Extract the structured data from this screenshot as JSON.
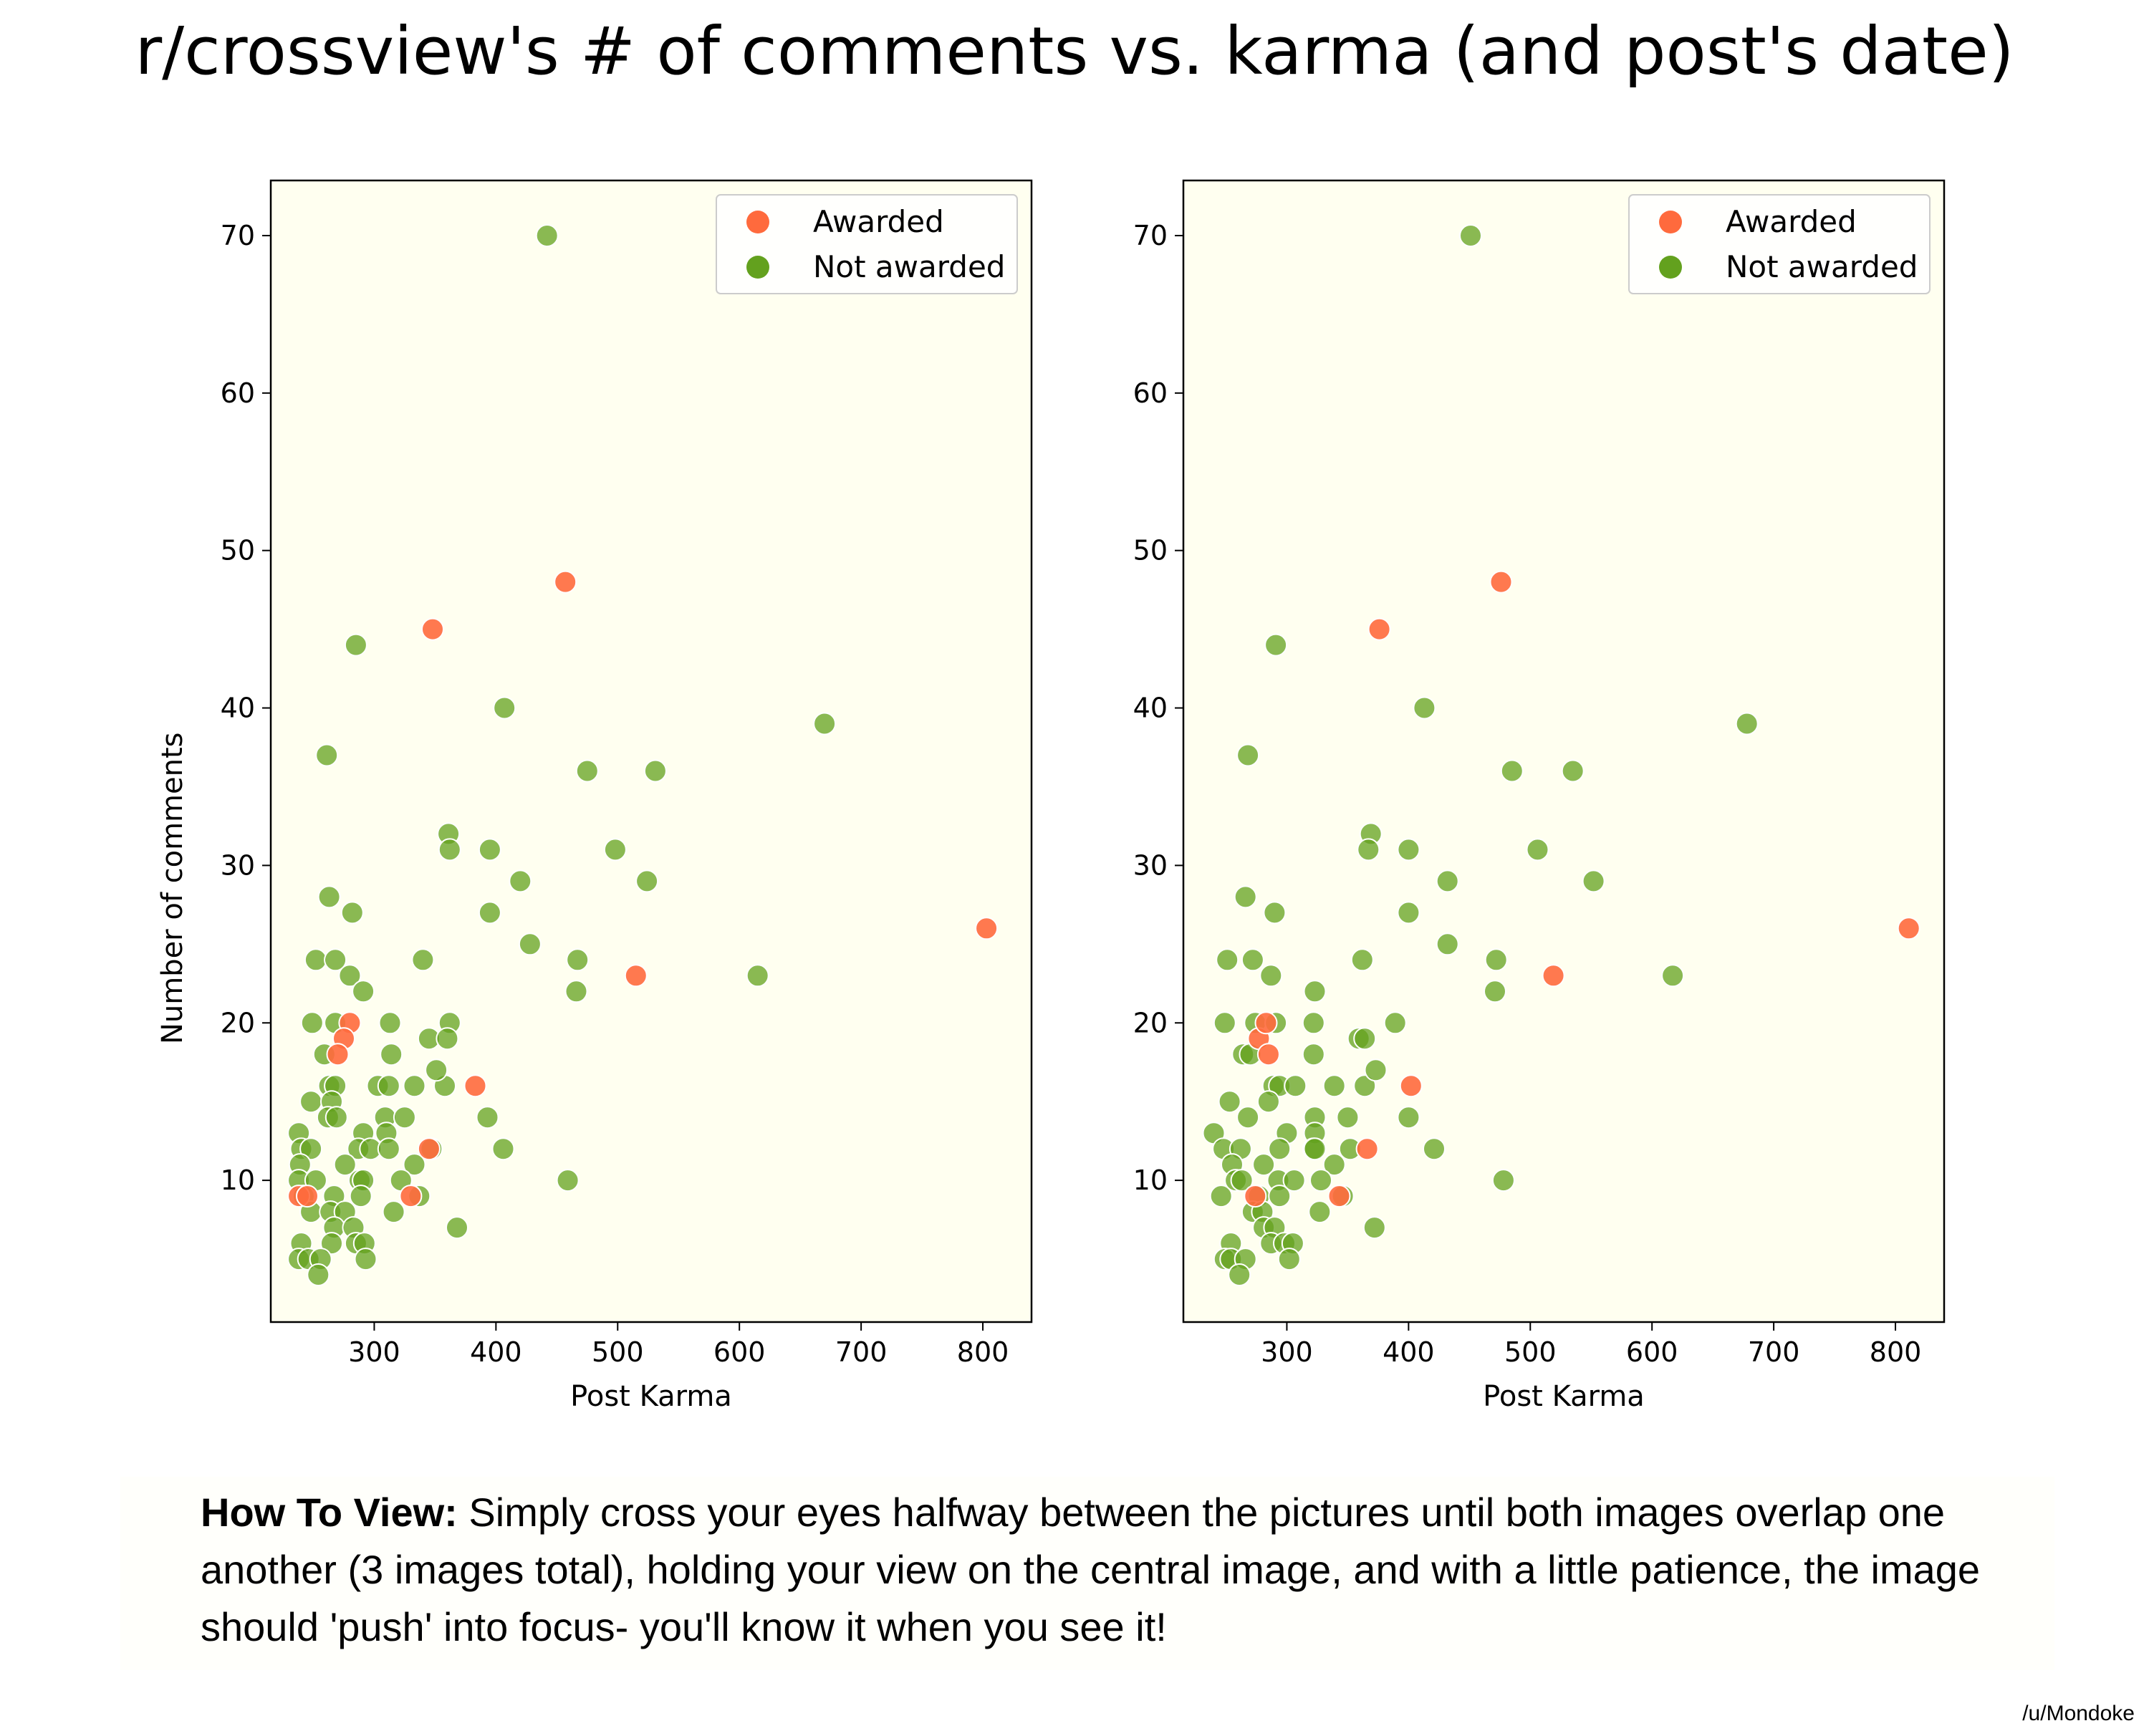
{
  "title": "r/crossview's # of comments vs. karma (and post's date)",
  "note": {
    "bold": "How To View:",
    "text": " Simply cross your eyes halfway between the pictures until both images overlap one another (3 images total), holding your view on the central image, and with a little patience, the image should 'push' into focus- you'll know it when you see it!"
  },
  "credit": "/u/Mondoke",
  "colors": {
    "awarded": "#ff6a3d",
    "not_awarded": "#63a11e",
    "plot_bg": "#fffff0"
  },
  "chart_data": [
    {
      "type": "scatter",
      "title": "",
      "xlabel": "Post Karma",
      "ylabel": "Number of comments",
      "xlim": [
        215,
        840
      ],
      "ylim": [
        1,
        73.5
      ],
      "xticks": [
        300,
        400,
        500,
        600,
        700,
        800
      ],
      "yticks": [
        10,
        20,
        30,
        40,
        50,
        60,
        70
      ],
      "legend": "top-right",
      "grid": false,
      "series": [
        {
          "name": "Awarded",
          "points": [
            [
              238,
              9
            ],
            [
              245,
              9
            ],
            [
              280,
              20
            ],
            [
              275,
              19
            ],
            [
              270,
              18
            ],
            [
              348,
              45
            ],
            [
              457,
              48
            ],
            [
              383,
              16
            ],
            [
              330,
              9
            ],
            [
              345,
              12
            ],
            [
              515,
              23
            ],
            [
              803,
              26
            ]
          ]
        },
        {
          "name": "Not awarded",
          "points": [
            [
              442,
              70
            ],
            [
              285,
              44
            ],
            [
              407,
              40
            ],
            [
              261,
              37
            ],
            [
              475,
              36
            ],
            [
              531,
              36
            ],
            [
              670,
              39
            ],
            [
              361,
              32
            ],
            [
              362,
              31
            ],
            [
              395,
              31
            ],
            [
              498,
              31
            ],
            [
              524,
              29
            ],
            [
              420,
              29
            ],
            [
              263,
              28
            ],
            [
              282,
              27
            ],
            [
              395,
              27
            ],
            [
              428,
              25
            ],
            [
              467,
              24
            ],
            [
              466,
              22
            ],
            [
              615,
              23
            ],
            [
              252,
              24
            ],
            [
              268,
              24
            ],
            [
              340,
              24
            ],
            [
              280,
              23
            ],
            [
              291,
              22
            ],
            [
              249,
              20
            ],
            [
              268,
              20
            ],
            [
              313,
              20
            ],
            [
              362,
              20
            ],
            [
              345,
              19
            ],
            [
              360,
              19
            ],
            [
              314,
              18
            ],
            [
              259,
              18
            ],
            [
              263,
              16
            ],
            [
              268,
              16
            ],
            [
              303,
              16
            ],
            [
              312,
              16
            ],
            [
              333,
              16
            ],
            [
              358,
              16
            ],
            [
              351,
              17
            ],
            [
              248,
              15
            ],
            [
              265,
              15
            ],
            [
              262,
              14
            ],
            [
              269,
              14
            ],
            [
              309,
              14
            ],
            [
              325,
              14
            ],
            [
              393,
              14
            ],
            [
              238,
              13
            ],
            [
              291,
              13
            ],
            [
              310,
              13
            ],
            [
              240,
              12
            ],
            [
              248,
              12
            ],
            [
              287,
              12
            ],
            [
              297,
              12
            ],
            [
              312,
              12
            ],
            [
              347,
              12
            ],
            [
              406,
              12
            ],
            [
              239,
              11
            ],
            [
              276,
              11
            ],
            [
              333,
              11
            ],
            [
              238,
              10
            ],
            [
              252,
              10
            ],
            [
              288,
              10
            ],
            [
              291,
              10
            ],
            [
              322,
              10
            ],
            [
              459,
              10
            ],
            [
              242,
              9
            ],
            [
              267,
              9
            ],
            [
              289,
              9
            ],
            [
              337,
              9
            ],
            [
              248,
              8
            ],
            [
              264,
              8
            ],
            [
              276,
              8
            ],
            [
              316,
              8
            ],
            [
              267,
              7
            ],
            [
              283,
              7
            ],
            [
              368,
              7
            ],
            [
              240,
              6
            ],
            [
              265,
              6
            ],
            [
              285,
              6
            ],
            [
              292,
              6
            ],
            [
              238,
              5
            ],
            [
              246,
              5
            ],
            [
              256,
              5
            ],
            [
              293,
              5
            ],
            [
              254,
              4
            ]
          ]
        }
      ]
    },
    {
      "type": "scatter",
      "title": "",
      "xlabel": "Post Karma",
      "ylabel": "",
      "xlim": [
        215,
        840
      ],
      "ylim": [
        1,
        73.5
      ],
      "xticks": [
        300,
        400,
        500,
        600,
        700,
        800
      ],
      "yticks": [
        10,
        20,
        30,
        40,
        50,
        60,
        70
      ],
      "legend": "top-right",
      "grid": false,
      "series": [
        {
          "name": "Awarded",
          "points": [
            [
              274,
              9
            ],
            [
              277,
              19
            ],
            [
              283,
              20
            ],
            [
              285,
              18
            ],
            [
              376,
              45
            ],
            [
              476,
              48
            ],
            [
              402,
              16
            ],
            [
              343,
              9
            ],
            [
              366,
              12
            ],
            [
              519,
              23
            ],
            [
              811,
              26
            ]
          ]
        },
        {
          "name": "Not awarded",
          "points": [
            [
              451,
              70
            ],
            [
              291,
              44
            ],
            [
              413,
              40
            ],
            [
              268,
              37
            ],
            [
              485,
              36
            ],
            [
              535,
              36
            ],
            [
              678,
              39
            ],
            [
              369,
              32
            ],
            [
              367,
              31
            ],
            [
              400,
              31
            ],
            [
              506,
              31
            ],
            [
              552,
              29
            ],
            [
              432,
              29
            ],
            [
              266,
              28
            ],
            [
              290,
              27
            ],
            [
              400,
              27
            ],
            [
              432,
              25
            ],
            [
              472,
              24
            ],
            [
              471,
              22
            ],
            [
              617,
              23
            ],
            [
              251,
              24
            ],
            [
              272,
              24
            ],
            [
              362,
              24
            ],
            [
              287,
              23
            ],
            [
              323,
              22
            ],
            [
              249,
              20
            ],
            [
              274,
              20
            ],
            [
              291,
              20
            ],
            [
              322,
              20
            ],
            [
              389,
              20
            ],
            [
              359,
              19
            ],
            [
              364,
              19
            ],
            [
              322,
              18
            ],
            [
              264,
              18
            ],
            [
              270,
              18
            ],
            [
              289,
              16
            ],
            [
              294,
              16
            ],
            [
              307,
              16
            ],
            [
              339,
              16
            ],
            [
              364,
              16
            ],
            [
              373,
              17
            ],
            [
              253,
              15
            ],
            [
              285,
              15
            ],
            [
              268,
              14
            ],
            [
              323,
              14
            ],
            [
              350,
              14
            ],
            [
              400,
              14
            ],
            [
              240,
              13
            ],
            [
              300,
              13
            ],
            [
              323,
              13
            ],
            [
              248,
              12
            ],
            [
              262,
              12
            ],
            [
              294,
              12
            ],
            [
              322,
              12
            ],
            [
              323,
              12
            ],
            [
              352,
              12
            ],
            [
              421,
              12
            ],
            [
              255,
              11
            ],
            [
              281,
              11
            ],
            [
              339,
              11
            ],
            [
              246,
              9
            ],
            [
              258,
              10
            ],
            [
              263,
              10
            ],
            [
              293,
              10
            ],
            [
              306,
              10
            ],
            [
              328,
              10
            ],
            [
              478,
              10
            ],
            [
              277,
              9
            ],
            [
              294,
              9
            ],
            [
              346,
              9
            ],
            [
              272,
              8
            ],
            [
              280,
              8
            ],
            [
              327,
              8
            ],
            [
              281,
              7
            ],
            [
              290,
              7
            ],
            [
              372,
              7
            ],
            [
              254,
              6
            ],
            [
              287,
              6
            ],
            [
              298,
              6
            ],
            [
              305,
              6
            ],
            [
              249,
              5
            ],
            [
              254,
              5
            ],
            [
              266,
              5
            ],
            [
              302,
              5
            ],
            [
              261,
              4
            ]
          ]
        }
      ]
    }
  ]
}
